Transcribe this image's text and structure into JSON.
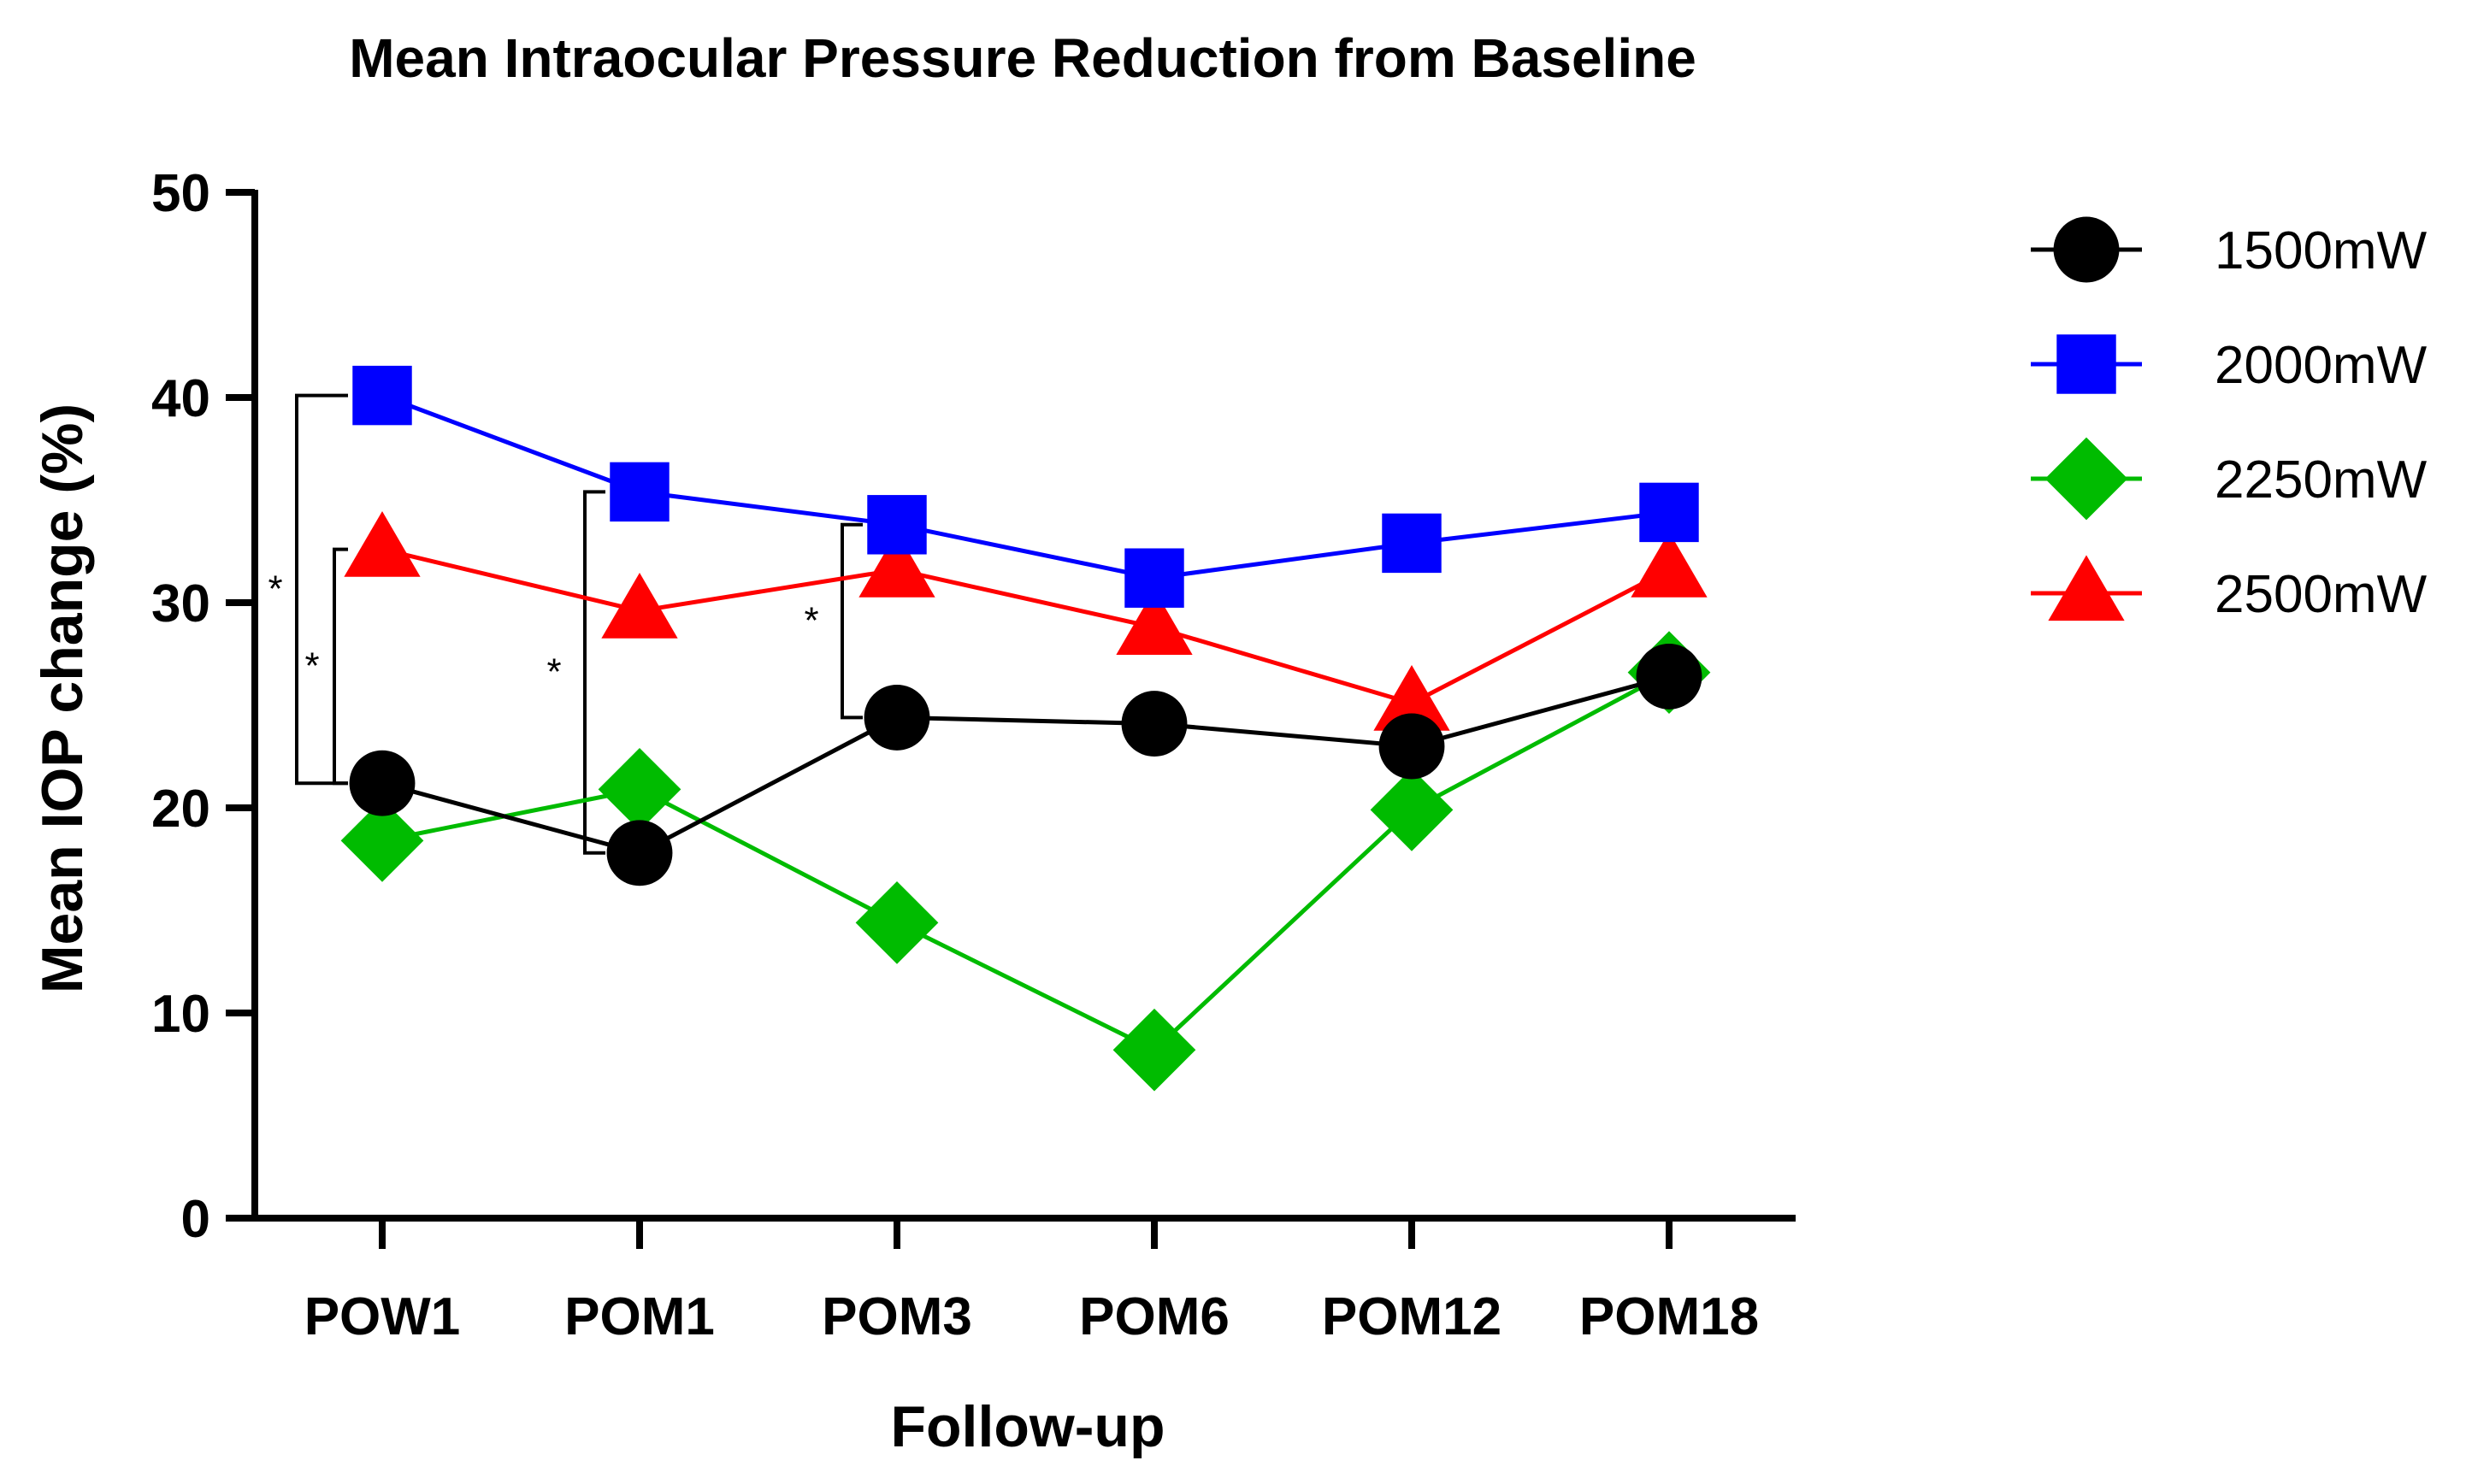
{
  "chart_data": {
    "type": "line",
    "title": "Mean Intraocular Pressure Reduction from Baseline",
    "xlabel": "Follow-up",
    "ylabel": "Mean IOP change (%)",
    "categories": [
      "POW1",
      "POM1",
      "POM3",
      "POM6",
      "POM12",
      "POM18"
    ],
    "ylim": [
      0,
      50
    ],
    "yticks": [
      0,
      10,
      20,
      30,
      40,
      50
    ],
    "legend_position": "right",
    "grid": false,
    "series": [
      {
        "name": "1500mW",
        "color": "#000000",
        "marker": "circle",
        "values": [
          21.2,
          17.8,
          24.4,
          24.1,
          23.0,
          26.4
        ]
      },
      {
        "name": "2000mW",
        "color": "#0000ff",
        "marker": "square",
        "values": [
          40.1,
          35.4,
          33.8,
          31.2,
          32.9,
          34.4
        ]
      },
      {
        "name": "2250mW",
        "color": "#00bb00",
        "marker": "diamond",
        "values": [
          18.4,
          20.9,
          14.4,
          8.2,
          19.9,
          26.6
        ]
      },
      {
        "name": "2500mW",
        "color": "#ff0000",
        "marker": "triangle",
        "values": [
          32.6,
          29.6,
          31.6,
          28.8,
          25.1,
          31.6
        ]
      }
    ],
    "significance_brackets": [
      {
        "category": "POW1",
        "y_low": 21.2,
        "y_high": 40.1,
        "label": "*"
      },
      {
        "category": "POW1",
        "y_low": 21.2,
        "y_high": 32.6,
        "label": "*"
      },
      {
        "category": "POM1",
        "y_low": 17.8,
        "y_high": 35.4,
        "label": "*"
      },
      {
        "category": "POM3",
        "y_low": 24.4,
        "y_high": 33.8,
        "label": "*"
      }
    ]
  }
}
